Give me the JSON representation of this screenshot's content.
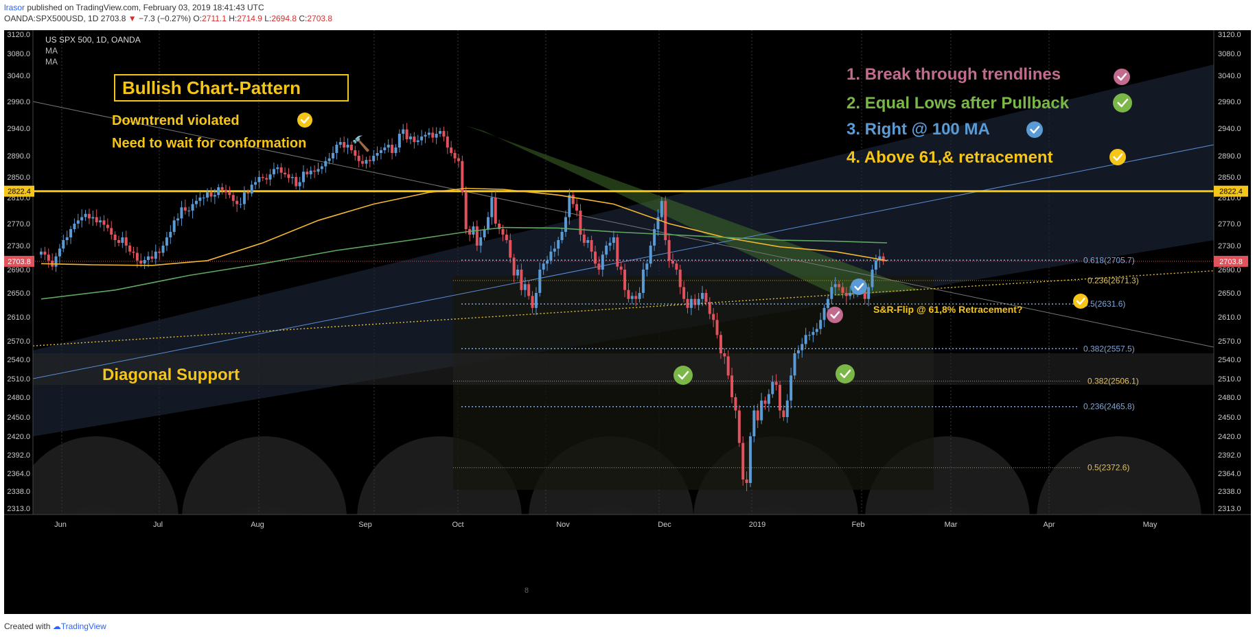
{
  "header": {
    "author": "lrasor",
    "published": "published on TradingView.com, February 03, 2019 18:41:43 UTC",
    "symbol_line": "OANDA:SPX500USD, 1D",
    "price": "2703.8",
    "change": "−7.3 (−0.27%)",
    "o_label": "O:",
    "o": "2711.1",
    "h_label": "H:",
    "h": "2714.9",
    "l_label": "L:",
    "l": "2694.8",
    "c_label": "C:",
    "c": "2703.8"
  },
  "legend": {
    "title": "US SPX 500, 1D, OANDA",
    "ma1": "MA",
    "ma2": "MA"
  },
  "annotations": {
    "box_title": "Bullish Chart-Pattern",
    "note1": "Downtrend violated",
    "note2": "Need to wait for conformation",
    "diagonal": "Diagonal Support",
    "list1": "1. Break through trendlines",
    "list2": "2. Equal Lows after Pullback",
    "list3": "3. Right @ 100 MA",
    "list4": "4. Above 61,& retracement",
    "sr_flip": "S&R-Flip @ 61,8% Retracement?",
    "small_mark": "8"
  },
  "colors": {
    "background": "#000000",
    "up_candle": "#5b9bd5",
    "down_candle": "#e0535d",
    "ma_100": "#f5b82e",
    "ma_200": "#5fa85f",
    "resistance": "#f5c518",
    "check_yellow": "#f5c518",
    "check_green": "#7ab648",
    "check_blue": "#5b9bd5",
    "check_pink": "#c36b8e",
    "list1": "#c36b8e",
    "list2": "#7ab648",
    "list3": "#5b9bd5",
    "list4": "#f5c518"
  },
  "footer": {
    "created": "Created with",
    "brand": "TradingView"
  },
  "chart_data": {
    "type": "candlestick",
    "title": "US SPX 500, 1D, OANDA",
    "ylim": [
      2313,
      3140
    ],
    "y_ticks": [
      3120.0,
      3080.0,
      3040.0,
      2990.0,
      2940.0,
      2890.0,
      2850.0,
      2810.0,
      2770.0,
      2730.0,
      2690.0,
      2650.0,
      2610.0,
      2570.0,
      2540.0,
      2510.0,
      2480.0,
      2450.0,
      2420.0,
      2392.0,
      2364.0,
      2338.0,
      2313.0
    ],
    "x_tick_labels": [
      "Jun",
      "Jul",
      "Aug",
      "Sep",
      "Oct",
      "Nov",
      "Dec",
      "2019",
      "Feb",
      "Mar",
      "Apr",
      "May"
    ],
    "last_price": 2703.8,
    "resistance_level": 2822.4,
    "fib_blue": [
      {
        "label": "0.618(2705.7)",
        "value": 2705.7
      },
      {
        "label": "0.5(2631.6)",
        "value": 2631.6
      },
      {
        "label": "0.382(2557.5)",
        "value": 2557.5
      },
      {
        "label": "0.236(2465.8)",
        "value": 2465.8
      }
    ],
    "fib_yellow": [
      {
        "label": "0.236(2671.3)",
        "value": 2671.3
      },
      {
        "label": "0.382(2506.1)",
        "value": 2506.1
      },
      {
        "label": "0.5(2372.6)",
        "value": 2372.6
      }
    ],
    "closes": [
      2720,
      2715,
      2705,
      2695,
      2712,
      2725,
      2740,
      2745,
      2760,
      2770,
      2775,
      2780,
      2785,
      2778,
      2780,
      2772,
      2775,
      2768,
      2762,
      2750,
      2740,
      2735,
      2745,
      2730,
      2720,
      2718,
      2705,
      2700,
      2706,
      2712,
      2708,
      2720,
      2718,
      2730,
      2745,
      2755,
      2775,
      2778,
      2795,
      2790,
      2790,
      2800,
      2805,
      2810,
      2810,
      2820,
      2812,
      2815,
      2830,
      2825,
      2820,
      2815,
      2805,
      2800,
      2800,
      2820,
      2818,
      2835,
      2840,
      2850,
      2848,
      2845,
      2855,
      2865,
      2868,
      2858,
      2855,
      2848,
      2850,
      2832,
      2840,
      2860,
      2855,
      2862,
      2860,
      2865,
      2870,
      2880,
      2885,
      2895,
      2910,
      2915,
      2905,
      2910,
      2900,
      2890,
      2880,
      2875,
      2882,
      2880,
      2890,
      2895,
      2900,
      2905,
      2910,
      2895,
      2905,
      2930,
      2938,
      2920,
      2925,
      2915,
      2918,
      2925,
      2928,
      2932,
      2923,
      2930,
      2935,
      2925,
      2905,
      2895,
      2885,
      2880,
      2820,
      2760,
      2750,
      2765,
      2730,
      2745,
      2760,
      2780,
      2810,
      2770,
      2760,
      2750,
      2740,
      2710,
      2680,
      2690,
      2655,
      2665,
      2645,
      2625,
      2650,
      2690,
      2700,
      2705,
      2720,
      2725,
      2740,
      2755,
      2780,
      2815,
      2800,
      2790,
      2750,
      2735,
      2740,
      2720,
      2700,
      2690,
      2715,
      2730,
      2735,
      2745,
      2695,
      2690,
      2655,
      2640,
      2645,
      2640,
      2650,
      2690,
      2700,
      2730,
      2760,
      2780,
      2805,
      2740,
      2705,
      2700,
      2690,
      2660,
      2640,
      2625,
      2640,
      2630,
      2640,
      2650,
      2635,
      2615,
      2605,
      2580,
      2550,
      2545,
      2515,
      2480,
      2460,
      2410,
      2355,
      2350,
      2420,
      2460,
      2445,
      2475,
      2470,
      2485,
      2505,
      2500,
      2460,
      2450,
      2475,
      2515,
      2550,
      2555,
      2565,
      2580,
      2580,
      2585,
      2590,
      2605,
      2625,
      2640,
      2660,
      2665,
      2660,
      2650,
      2645,
      2650,
      2655,
      2665,
      2660,
      2640,
      2660,
      2690,
      2705,
      2712,
      2703.8
    ],
    "ma100": [
      [
        0,
        2700
      ],
      [
        14,
        2698
      ],
      [
        30,
        2697
      ],
      [
        45,
        2705
      ],
      [
        60,
        2735
      ],
      [
        75,
        2775
      ],
      [
        90,
        2800
      ],
      [
        105,
        2820
      ],
      [
        115,
        2828
      ],
      [
        125,
        2826
      ],
      [
        140,
        2815
      ],
      [
        155,
        2800
      ],
      [
        170,
        2770
      ],
      [
        185,
        2745
      ],
      [
        200,
        2728
      ],
      [
        215,
        2720
      ],
      [
        229,
        2705
      ]
    ],
    "ma200": [
      [
        0,
        2640
      ],
      [
        20,
        2655
      ],
      [
        40,
        2680
      ],
      [
        60,
        2700
      ],
      [
        80,
        2722
      ],
      [
        100,
        2740
      ],
      [
        115,
        2755
      ],
      [
        125,
        2763
      ],
      [
        140,
        2762
      ],
      [
        155,
        2755
      ],
      [
        170,
        2750
      ],
      [
        185,
        2745
      ],
      [
        200,
        2740
      ],
      [
        215,
        2738
      ],
      [
        229,
        2735
      ]
    ]
  }
}
